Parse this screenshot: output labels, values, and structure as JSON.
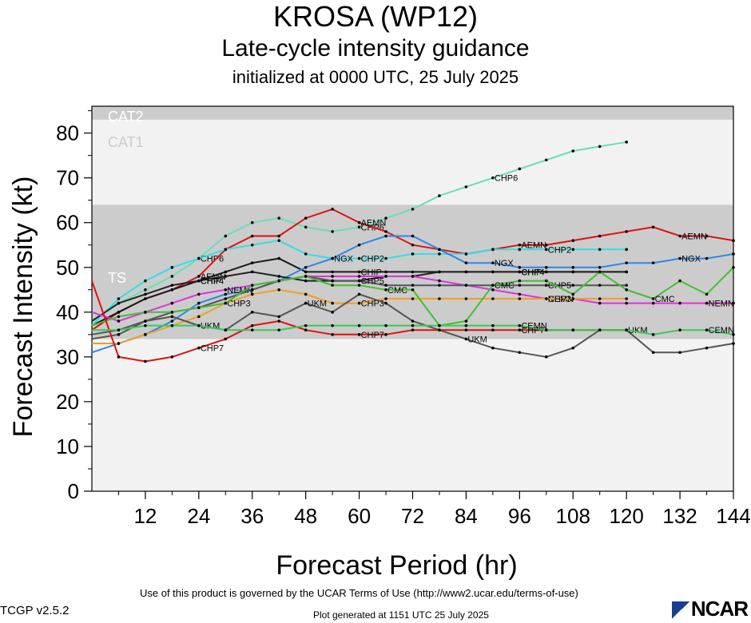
{
  "header": {
    "title": "KROSA (WP12)",
    "subtitle": "Late-cycle intensity guidance",
    "init": "initialized at 0000 UTC, 25 July 2025"
  },
  "footer": {
    "terms": "Use of this product is governed by the UCAR Terms of Use (http://www2.ucar.edu/terms-of-use)",
    "version": "TCGP v2.5.2",
    "generated": "Plot generated at 1151 UTC   25 July 2025",
    "logo": "NCAR"
  },
  "chart_data": {
    "type": "line",
    "title": "KROSA (WP12)",
    "xlabel": "Forecast Period (hr)",
    "ylabel": "Forecast Intensity (kt)",
    "xlim": [
      0,
      144
    ],
    "ylim": [
      0,
      86
    ],
    "xticks": [
      12,
      24,
      36,
      48,
      60,
      72,
      84,
      96,
      108,
      120,
      132,
      144
    ],
    "yticks": [
      0,
      10,
      20,
      30,
      40,
      50,
      60,
      70,
      80
    ],
    "bands": [
      {
        "label": "TS",
        "from": 34,
        "to": 64,
        "color": "#cccccc"
      },
      {
        "label": "CAT1",
        "from": 64,
        "to": 83,
        "color": "#f2f2f2"
      },
      {
        "label": "CAT2",
        "from": 83,
        "to": 86,
        "color": "#cccccc"
      }
    ],
    "colors": {
      "background": "#f2f2f2",
      "band": "#cccccc"
    },
    "series": [
      {
        "name": "CHP6",
        "color": "#66e0b3",
        "x": [
          0,
          6,
          12,
          18,
          24,
          30,
          36,
          42,
          48,
          54,
          60,
          66,
          72,
          78,
          84,
          90,
          96,
          102,
          108,
          114,
          120
        ],
        "y": [
          38,
          42,
          45,
          48,
          52,
          57,
          60,
          61,
          59,
          58,
          59,
          61,
          63,
          66,
          68,
          70,
          72,
          74,
          76,
          77,
          78
        ],
        "labels": [
          {
            "text": "CHP6",
            "x": 24
          },
          {
            "text": "CHP6",
            "x": 60
          },
          {
            "text": "CHP6",
            "x": 90
          }
        ]
      },
      {
        "name": "AEMN",
        "color": "#e01010",
        "x": [
          0,
          6,
          12,
          18,
          24,
          30,
          36,
          42,
          48,
          54,
          60,
          66,
          72,
          78,
          84,
          90,
          96,
          102,
          108,
          114,
          120,
          126,
          132,
          138,
          144
        ],
        "y": [
          36,
          40,
          43,
          45,
          48,
          54,
          57,
          57,
          61,
          63,
          60,
          58,
          55,
          54,
          53,
          54,
          55,
          55,
          56,
          57,
          58,
          59,
          57,
          57,
          56
        ],
        "labels": [
          {
            "text": "AEMN",
            "x": 24
          },
          {
            "text": "AEMN",
            "x": 60
          },
          {
            "text": "AEMN",
            "x": 96
          },
          {
            "text": "AEMN",
            "x": 132
          }
        ]
      },
      {
        "name": "CHIP",
        "color": "#1a1a1a",
        "x": [
          0,
          6,
          12,
          18,
          24,
          30,
          36,
          42,
          48,
          54,
          60,
          66,
          72,
          78,
          84,
          90,
          96,
          102,
          108,
          114,
          120
        ],
        "y": [
          37,
          40,
          43,
          45,
          47,
          49,
          51,
          52,
          49,
          49,
          49,
          49,
          49,
          49,
          49,
          49,
          49,
          49,
          49,
          49,
          49
        ],
        "labels": [
          {
            "text": "CHIP",
            "x": 24
          },
          {
            "text": "CHIP",
            "x": 60
          },
          {
            "text": "CHIP",
            "x": 96
          }
        ]
      },
      {
        "name": "CHP2",
        "color": "#33dde6",
        "x": [
          0,
          6,
          12,
          18,
          24,
          30,
          36,
          42,
          48,
          54,
          60,
          66,
          72,
          78,
          84,
          90,
          96,
          102,
          108,
          114,
          120
        ],
        "y": [
          37,
          43,
          47,
          50,
          52,
          54,
          55,
          56,
          53,
          52,
          52,
          52,
          53,
          53,
          53,
          54,
          54,
          54,
          54,
          54,
          54
        ],
        "labels": [
          {
            "text": "CHP2",
            "x": 60
          },
          {
            "text": "CHP2",
            "x": 102
          }
        ]
      },
      {
        "name": "NGX",
        "color": "#2f86e6",
        "x": [
          0,
          6,
          12,
          18,
          24,
          30,
          36,
          42,
          48,
          54,
          60,
          66,
          72,
          78,
          84,
          90,
          96,
          102,
          108,
          114,
          120,
          126,
          132,
          138,
          144
        ],
        "y": [
          31,
          33,
          35,
          38,
          42,
          44,
          45,
          47,
          50,
          52,
          55,
          57,
          57,
          54,
          51,
          51,
          50,
          50,
          50,
          50,
          51,
          51,
          52,
          52,
          53
        ],
        "labels": [
          {
            "text": "NGX",
            "x": 54
          },
          {
            "text": "NGX",
            "x": 90
          },
          {
            "text": "NGX",
            "x": 132
          }
        ]
      },
      {
        "name": "CHP4",
        "color": "#222222",
        "x": [
          0,
          6,
          12,
          18,
          24,
          30,
          36,
          42,
          48,
          54,
          60,
          66,
          72,
          78,
          84,
          90,
          96,
          102,
          108,
          114,
          120
        ],
        "y": [
          38,
          42,
          44,
          46,
          47,
          48,
          49,
          48,
          47,
          47,
          47,
          48,
          48,
          49,
          49,
          49,
          49,
          49,
          49,
          49,
          49
        ],
        "labels": [
          {
            "text": "CHP4",
            "x": 24
          },
          {
            "text": "CHP4",
            "x": 96
          }
        ]
      },
      {
        "name": "NEMN",
        "color": "#e030e0",
        "x": [
          0,
          6,
          12,
          18,
          24,
          30,
          36,
          42,
          48,
          54,
          60,
          66,
          72,
          78,
          84,
          90,
          96,
          102,
          108,
          114,
          120,
          126,
          132,
          138,
          144
        ],
        "y": [
          40,
          38,
          40,
          42,
          44,
          45,
          46,
          47,
          48,
          48,
          48,
          48,
          48,
          47,
          46,
          45,
          44,
          43,
          43,
          42,
          42,
          42,
          42,
          42,
          42
        ],
        "labels": [
          {
            "text": "NEMN",
            "x": 30
          },
          {
            "text": "NEMN",
            "x": 102
          },
          {
            "text": "NEMN",
            "x": 138
          }
        ]
      },
      {
        "name": "CHP5",
        "color": "#555555",
        "x": [
          0,
          6,
          12,
          18,
          24,
          30,
          36,
          42,
          48,
          54,
          60,
          66,
          72,
          78,
          84,
          90,
          96,
          102,
          108,
          114,
          120
        ],
        "y": [
          35,
          36,
          38,
          40,
          41,
          43,
          45,
          47,
          48,
          47,
          47,
          46,
          46,
          46,
          46,
          46,
          46,
          46,
          46,
          46,
          46
        ],
        "labels": [
          {
            "text": "CHP5",
            "x": 60
          },
          {
            "text": "CHP5",
            "x": 102
          }
        ]
      },
      {
        "name": "CHP3",
        "color": "#f0a020",
        "x": [
          0,
          6,
          12,
          18,
          24,
          30,
          36,
          42,
          48,
          54,
          60,
          66,
          72,
          78,
          84,
          90,
          96,
          102,
          108,
          114,
          120
        ],
        "y": [
          33,
          33,
          35,
          37,
          39,
          42,
          44,
          45,
          44,
          42,
          42,
          43,
          43,
          43,
          43,
          43,
          43,
          43,
          43,
          43,
          43
        ],
        "labels": [
          {
            "text": "CHP3",
            "x": 30
          },
          {
            "text": "CHP3",
            "x": 60
          },
          {
            "text": "CHP3",
            "x": 102
          }
        ]
      },
      {
        "name": "CMC",
        "color": "#40c030",
        "x": [
          0,
          6,
          12,
          18,
          24,
          30,
          36,
          42,
          48,
          54,
          60,
          66,
          72,
          78,
          84,
          90,
          96,
          102,
          108,
          114,
          120,
          126,
          132,
          138,
          144
        ],
        "y": [
          37,
          39,
          40,
          40,
          41,
          42,
          46,
          47,
          48,
          46,
          46,
          45,
          45,
          37,
          38,
          46,
          47,
          47,
          44,
          49,
          45,
          43,
          47,
          44,
          50
        ],
        "labels": [
          {
            "text": "CMC",
            "x": 90
          },
          {
            "text": "CMC",
            "x": 126
          },
          {
            "text": "CMC",
            "x": 66
          }
        ]
      },
      {
        "name": "UKM",
        "color": "#555555",
        "x": [
          0,
          6,
          12,
          18,
          24,
          30,
          36,
          42,
          48,
          54,
          60,
          66,
          72,
          78,
          84,
          90,
          96,
          102,
          108,
          114,
          120,
          126,
          132,
          138,
          144
        ],
        "y": [
          34,
          35,
          38,
          39,
          37,
          36,
          40,
          39,
          42,
          40,
          44,
          42,
          38,
          36,
          34,
          32,
          31,
          30,
          32,
          36,
          36,
          31,
          31,
          32,
          33
        ],
        "labels": [
          {
            "text": "UKM",
            "x": 24
          },
          {
            "text": "UKM",
            "x": 48
          },
          {
            "text": "UKM",
            "x": 84
          },
          {
            "text": "UKM",
            "x": 120
          }
        ]
      },
      {
        "name": "CHP7",
        "color": "#e01010",
        "x": [
          0,
          6,
          12,
          18,
          24,
          30,
          36,
          42,
          48,
          54,
          60,
          66,
          72,
          78,
          84,
          90,
          96,
          102,
          108,
          114,
          120
        ],
        "y": [
          47,
          30,
          29,
          30,
          32,
          34,
          37,
          38,
          36,
          35,
          35,
          35,
          36,
          36,
          36,
          36,
          36,
          36,
          36,
          36,
          36
        ],
        "labels": [
          {
            "text": "CHP7",
            "x": 24
          },
          {
            "text": "CHP7",
            "x": 60
          },
          {
            "text": "CHP7",
            "x": 96
          }
        ]
      },
      {
        "name": "CEMN",
        "color": "#33cc55",
        "x": [
          0,
          6,
          12,
          18,
          24,
          30,
          36,
          42,
          48,
          54,
          60,
          66,
          72,
          78,
          84,
          90,
          96,
          102,
          108,
          114,
          120,
          126,
          132,
          138,
          144
        ],
        "y": [
          36,
          36,
          37,
          37,
          37,
          36,
          36,
          36,
          37,
          37,
          37,
          37,
          37,
          37,
          37,
          37,
          37,
          36,
          36,
          36,
          36,
          35,
          36,
          36,
          35
        ],
        "labels": [
          {
            "text": "CEMN",
            "x": 96
          },
          {
            "text": "CEMN",
            "x": 138
          }
        ]
      }
    ]
  }
}
